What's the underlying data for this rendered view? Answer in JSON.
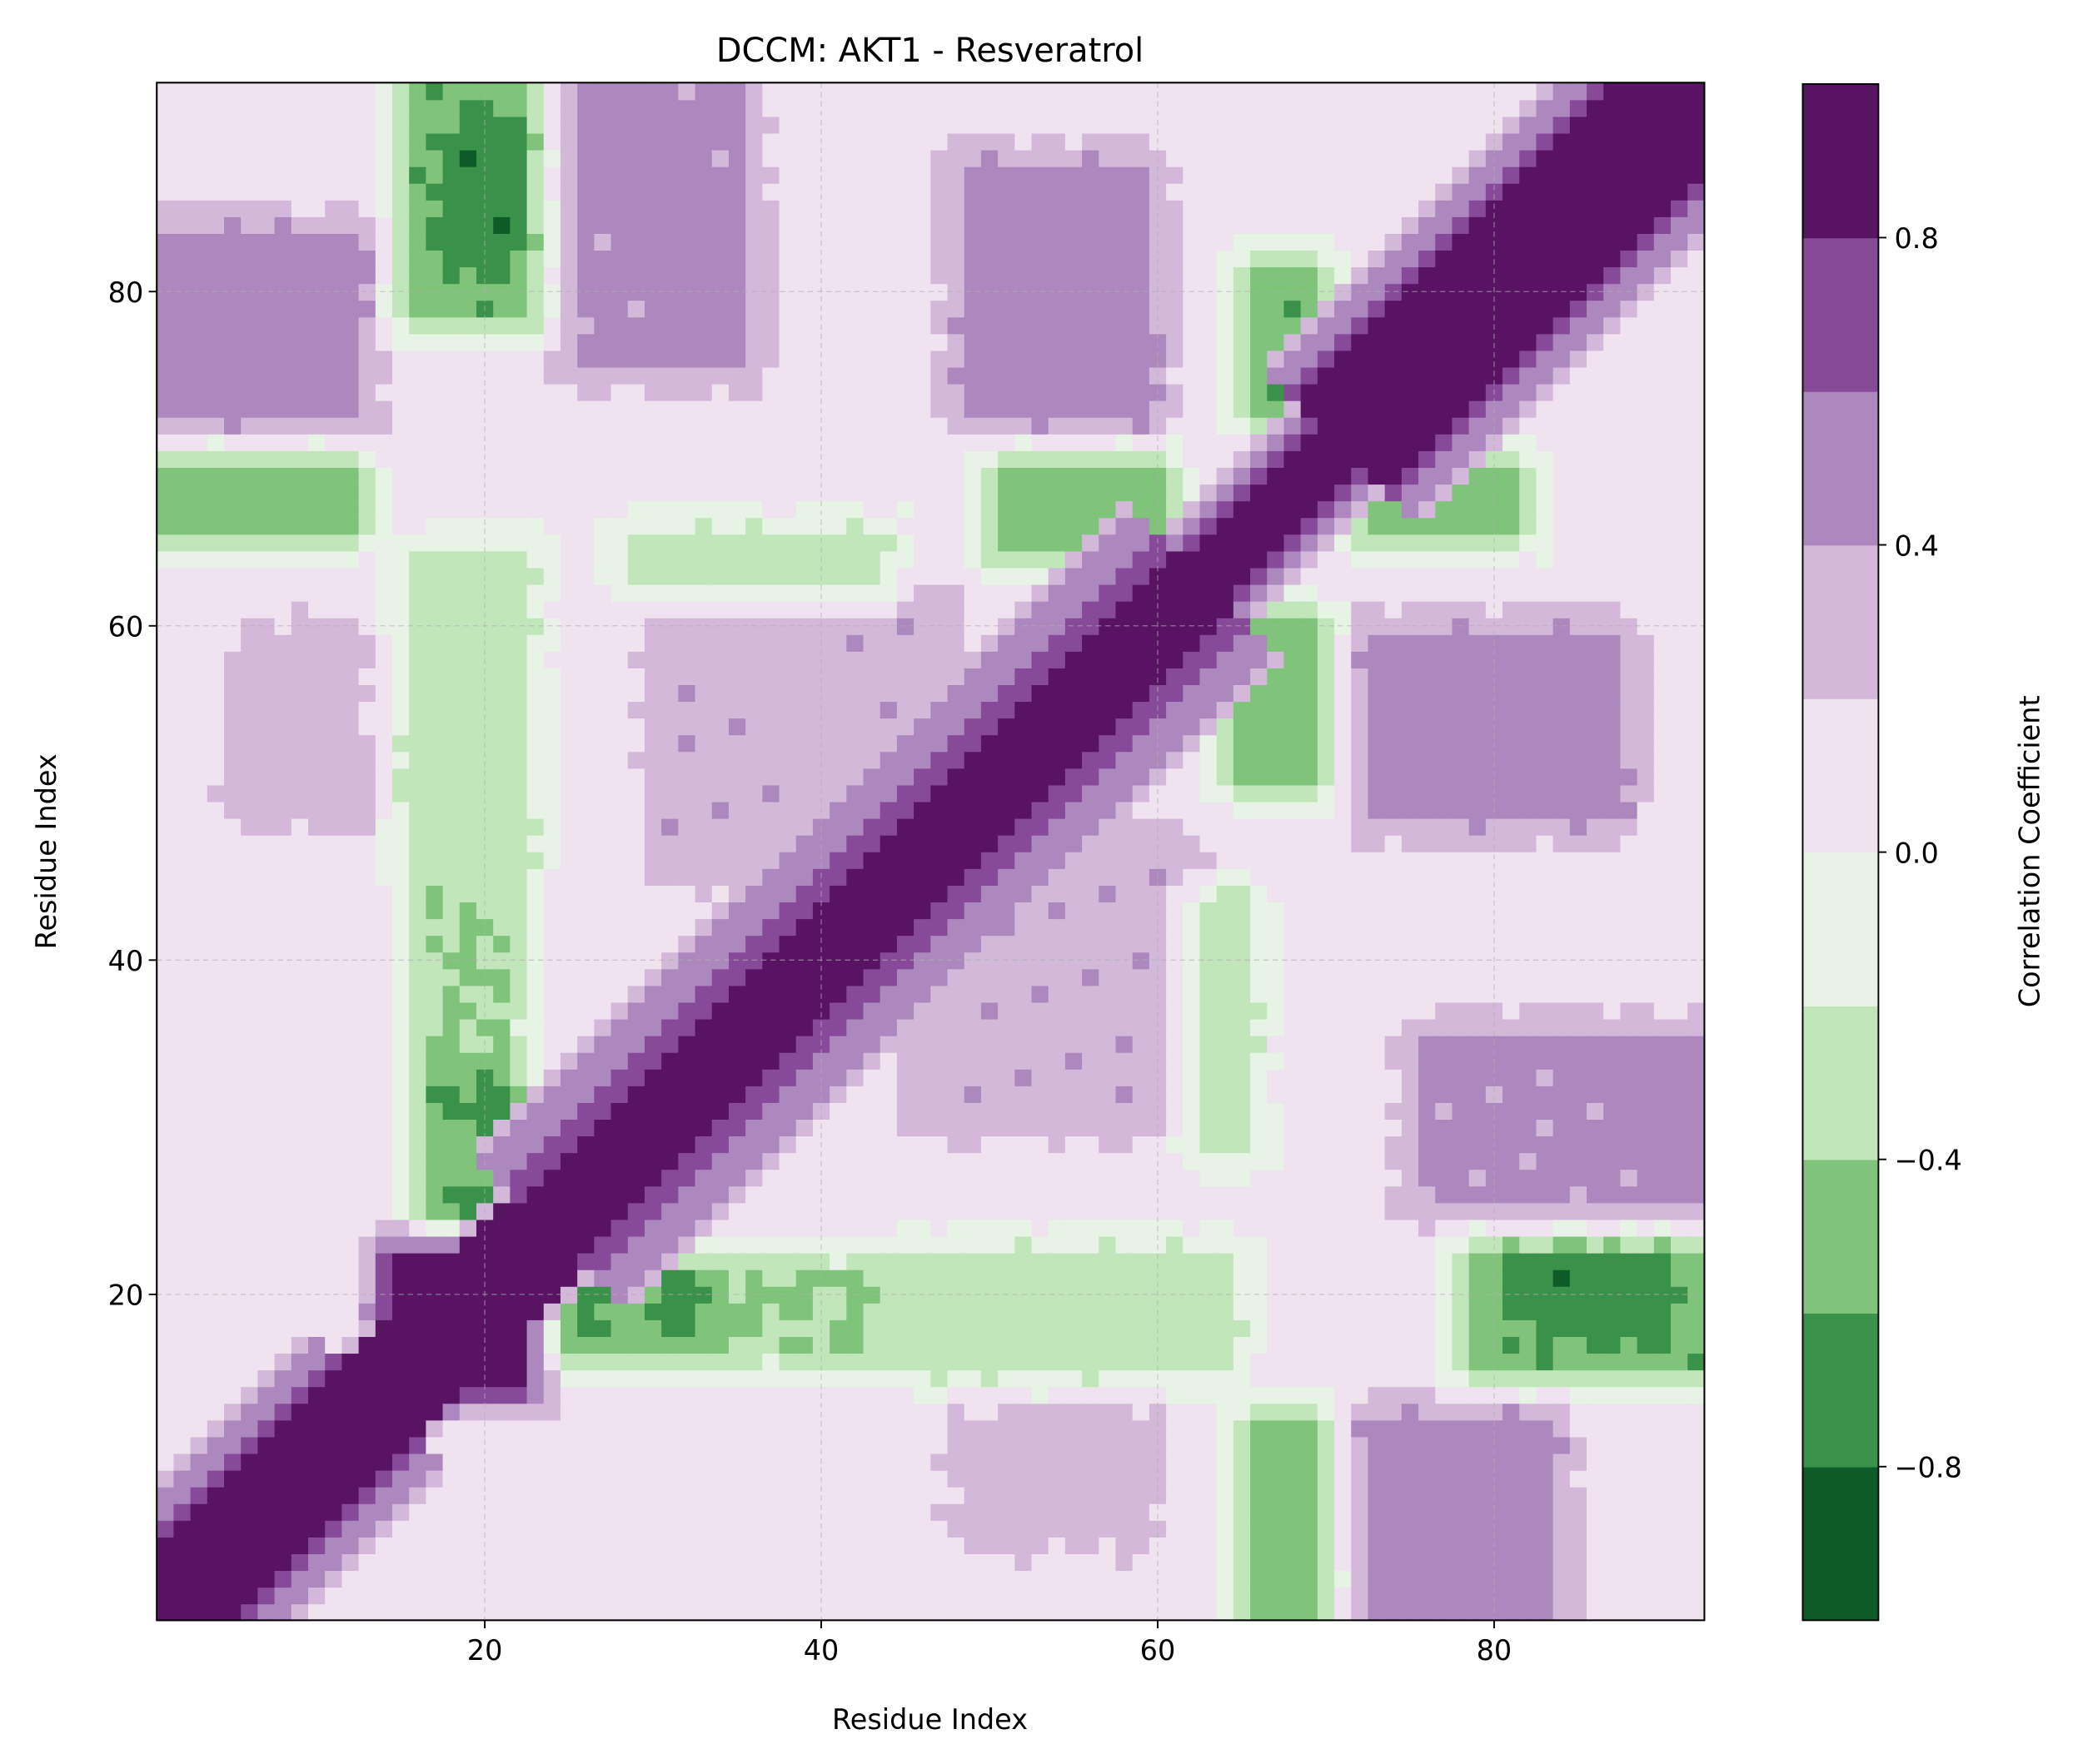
{
  "chart_data": {
    "type": "heatmap",
    "title": "DCCM: AKT1 - Resveratrol",
    "xlabel": "Residue Index",
    "ylabel": "Residue Index",
    "xlim": [
      0.5,
      92.5
    ],
    "ylim": [
      0.5,
      92.5
    ],
    "n_residues": 92,
    "xticks": [
      20,
      40,
      60,
      80
    ],
    "yticks": [
      20,
      40,
      60,
      80
    ],
    "grid": true,
    "colorbar": {
      "label": "Correlation Coefficient",
      "range": [
        -1.0,
        1.0
      ],
      "levels": [
        -1.0,
        -0.8,
        -0.6,
        -0.4,
        -0.2,
        0.0,
        0.2,
        0.4,
        0.6,
        0.8,
        1.0
      ],
      "ticks": [
        {
          "value": -0.8,
          "label": "−0.8"
        },
        {
          "value": -0.4,
          "label": "−0.4"
        },
        {
          "value": 0.0,
          "label": "0.0"
        },
        {
          "value": 0.4,
          "label": "0.4"
        },
        {
          "value": 0.8,
          "label": "0.8"
        }
      ],
      "colors": [
        "#0d5c28",
        "#3a924a",
        "#80c47c",
        "#c1e6ba",
        "#e6f3e5",
        "#efe3f0",
        "#d3b8da",
        "#ad88bf",
        "#874a98",
        "#581463"
      ]
    },
    "background_value": 0.1,
    "regions": [
      {
        "x": [
          1,
          13
        ],
        "y": [
          72,
          84
        ],
        "value": 0.5
      },
      {
        "x": [
          5,
          13
        ],
        "y": [
          48,
          60
        ],
        "value": 0.3
      },
      {
        "x": [
          30,
          48
        ],
        "y": [
          45,
          62
        ],
        "value": 0.35
      },
      {
        "x": [
          48,
          60
        ],
        "y": [
          72,
          88
        ],
        "value": 0.5
      },
      {
        "x": [
          25,
          36
        ],
        "y": [
          75,
          92
        ],
        "value": 0.45
      },
      {
        "x": [
          1,
          13
        ],
        "y": [
          65,
          70
        ],
        "value": -0.5
      },
      {
        "x": [
          50,
          61
        ],
        "y": [
          64,
          70
        ],
        "value": -0.5
      },
      {
        "x": [
          72,
          82
        ],
        "y": [
          65,
          70
        ],
        "value": -0.55
      },
      {
        "x": [
          15,
          23
        ],
        "y": [
          78,
          92
        ],
        "value": -0.55
      },
      {
        "x": [
          18,
          22
        ],
        "y": [
          82,
          90
        ],
        "value": -0.75
      },
      {
        "x": [
          24,
          45
        ],
        "y": [
          16,
          22
        ],
        "value": -0.4
      },
      {
        "x": [
          24,
          32
        ],
        "y": [
          17,
          21
        ],
        "value": -0.65
      },
      {
        "x": [
          45,
          62
        ],
        "y": [
          17,
          22
        ],
        "value": -0.3
      },
      {
        "x": [
          15,
          23
        ],
        "y": [
          45,
          65
        ],
        "value": -0.3
      },
      {
        "x": [
          16,
          22
        ],
        "y": [
          24,
          40
        ],
        "value": -0.4
      },
      {
        "x": [
          17,
          22
        ],
        "y": [
          25,
          27
        ],
        "value": -0.65
      },
      {
        "x": [
          17,
          22
        ],
        "y": [
          30,
          33
        ],
        "value": -0.65
      },
      {
        "x": [
          28,
          44
        ],
        "y": [
          62,
          66
        ],
        "value": -0.3
      },
      {
        "x": [
          14,
          23
        ],
        "y": [
          14,
          23
        ],
        "value": 0.9
      }
    ],
    "diagonal": [
      {
        "from": 1,
        "to": 13,
        "core": 3,
        "width": 8
      },
      {
        "from": 14,
        "to": 23,
        "core": 4,
        "width": 5
      },
      {
        "from": 24,
        "to": 62,
        "core": 2,
        "width": 9
      },
      {
        "from": 63,
        "to": 70,
        "core": 2,
        "width": 5
      },
      {
        "from": 71,
        "to": 92,
        "core": 4,
        "width": 9
      }
    ]
  }
}
